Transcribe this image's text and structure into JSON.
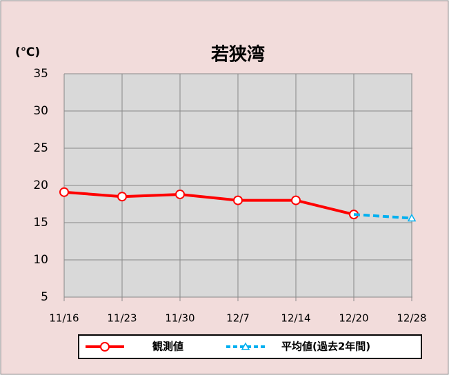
{
  "chart_data": {
    "type": "line",
    "title": "若狭湾",
    "y_label": "(℃)",
    "categories": [
      "11/16",
      "11/23",
      "11/30",
      "12/7",
      "12/14",
      "12/20",
      "12/28"
    ],
    "series": [
      {
        "name": "観測値",
        "color": "#ff0000",
        "marker": "circle",
        "dashed": false,
        "values": [
          19.1,
          18.5,
          18.8,
          18.0,
          18.0,
          16.1,
          null
        ]
      },
      {
        "name": "平均値(過去2年間)",
        "color": "#00b0f0",
        "marker": "triangle",
        "dashed": true,
        "values": [
          null,
          null,
          null,
          null,
          null,
          16.1,
          15.6
        ]
      }
    ],
    "ylim": [
      5,
      35
    ],
    "yticks": [
      5,
      10,
      15,
      20,
      25,
      30,
      35
    ],
    "grid": true
  }
}
